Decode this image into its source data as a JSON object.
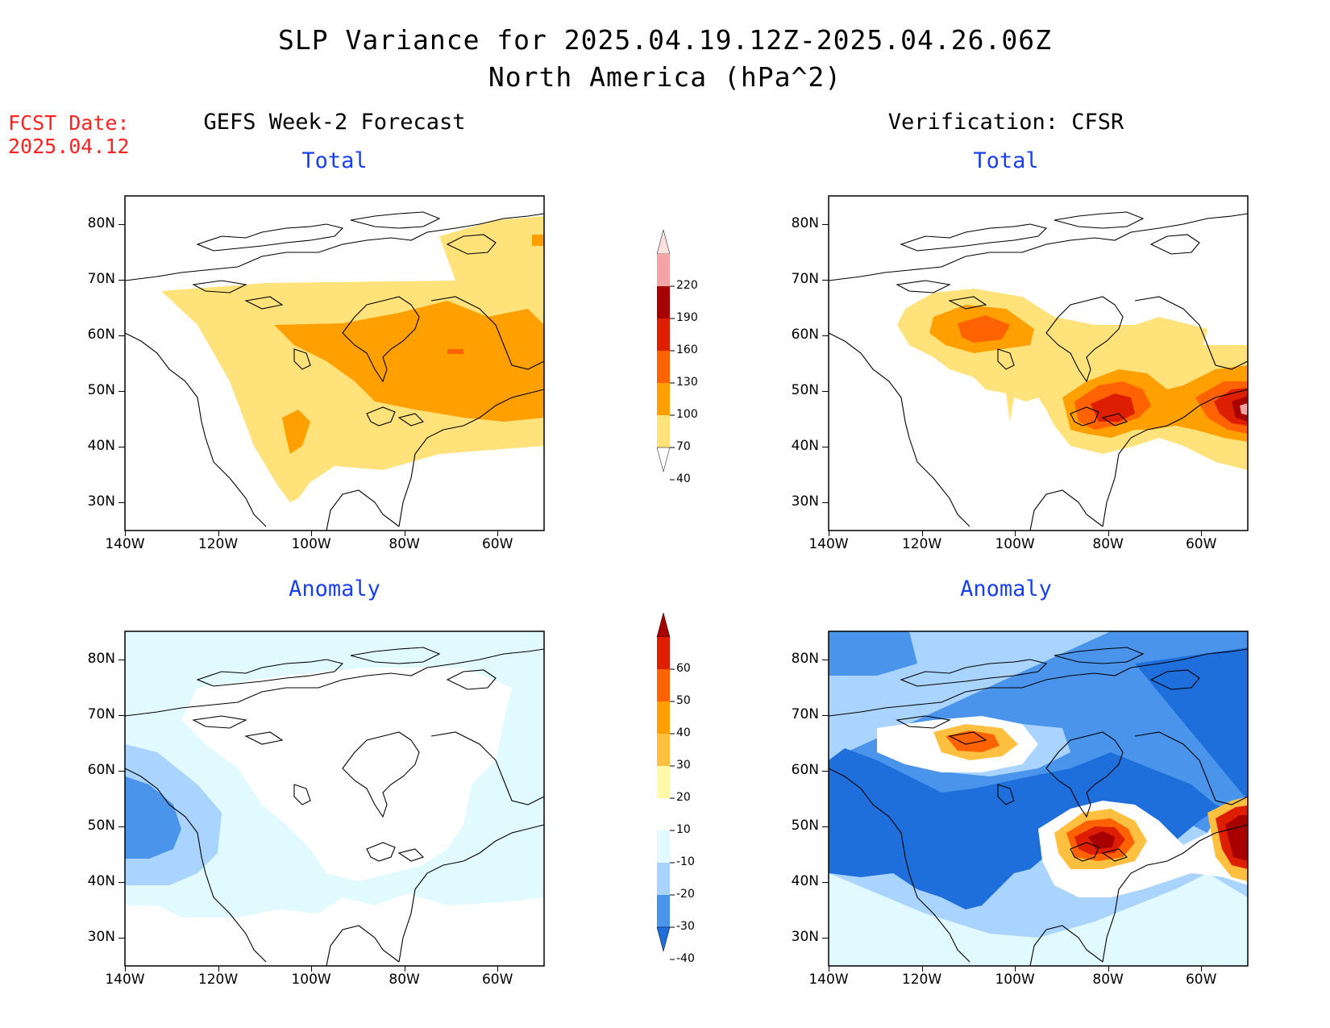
{
  "header": {
    "title": "SLP Variance for 2025.04.19.12Z-2025.04.26.06Z",
    "subtitle": "North America (hPa^2)",
    "fcst_date_label": "FCST Date:",
    "fcst_date_value": "2025.04.12"
  },
  "columns": {
    "left_title": "GEFS Week-2 Forecast",
    "right_title": "Verification: CFSR"
  },
  "panels": {
    "top_left_sub": "Total",
    "top_right_sub": "Total",
    "bottom_left_sub": "Anomaly",
    "bottom_right_sub": "Anomaly"
  },
  "axes": {
    "lat_labels": [
      "80N",
      "70N",
      "60N",
      "50N",
      "40N",
      "30N"
    ],
    "lon_labels": [
      "140W",
      "120W",
      "100W",
      "80W",
      "60W"
    ],
    "lat_range": [
      25,
      85
    ],
    "lon_range": [
      -140,
      -50
    ]
  },
  "colorbars": {
    "total": {
      "levels": [
        "220",
        "190",
        "160",
        "130",
        "100",
        "70",
        "40"
      ],
      "colors": [
        "#fbe0e0",
        "#f4a4a4",
        "#a80000",
        "#dd1e00",
        "#ff6200",
        "#ffa000",
        "#ffe27a"
      ]
    },
    "anomaly": {
      "levels": [
        "60",
        "50",
        "40",
        "30",
        "20",
        "10",
        "-10",
        "-20",
        "-30",
        "-40"
      ],
      "colors": [
        "#a80000",
        "#dd1e00",
        "#ff6200",
        "#ffa000",
        "#ffc040",
        "#fff8a8",
        "#ffffff",
        "#e0faff",
        "#a8d4ff",
        "#4a94ec",
        "#1e6edc"
      ]
    }
  }
}
